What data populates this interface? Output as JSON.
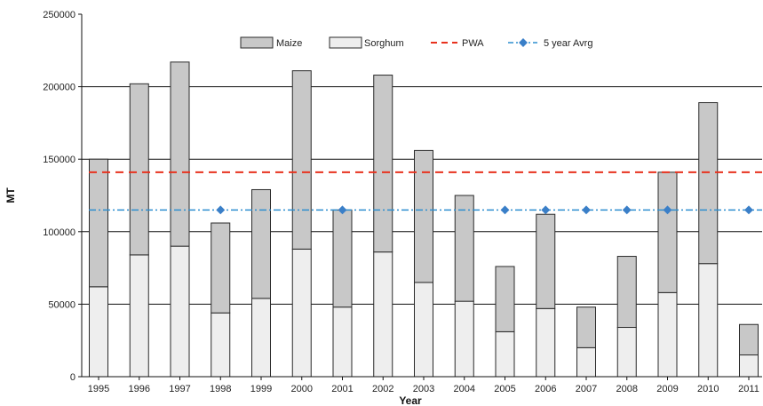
{
  "chart_data": {
    "type": "bar",
    "stacked": true,
    "xlabel": "Year",
    "ylabel": "MT",
    "ylim": [
      0,
      250000
    ],
    "yticks": [
      0,
      50000,
      100000,
      150000,
      200000,
      250000
    ],
    "ytick_labels": [
      "0",
      "50000",
      "100000",
      "150000",
      "200000",
      "250000"
    ],
    "grid": true,
    "legend_position": "top",
    "categories": [
      "1995",
      "1996",
      "1997",
      "1998",
      "1999",
      "2000",
      "2001",
      "2002",
      "2003",
      "2004",
      "2005",
      "2006",
      "2007",
      "2008",
      "2009",
      "2010",
      "2011"
    ],
    "series": [
      {
        "name": "Sorghum",
        "kind": "bar",
        "values": [
          62000,
          84000,
          90000,
          44000,
          54000,
          88000,
          48000,
          86000,
          65000,
          52000,
          31000,
          47000,
          20000,
          34000,
          58000,
          78000,
          15000
        ]
      },
      {
        "name": "Maize",
        "kind": "bar",
        "values": [
          88000,
          118000,
          127000,
          62000,
          75000,
          123000,
          67000,
          122000,
          91000,
          73000,
          45000,
          65000,
          28000,
          49000,
          83000,
          111000,
          21000
        ]
      },
      {
        "name": "PWA",
        "kind": "line",
        "values": [
          141000,
          141000,
          141000,
          141000,
          141000,
          141000,
          141000,
          141000,
          141000,
          141000,
          141000,
          141000,
          141000,
          141000,
          141000,
          141000,
          141000
        ]
      },
      {
        "name": "5 year Avrg",
        "kind": "line",
        "values": [
          115000,
          115000,
          115000,
          115000,
          115000,
          115000,
          115000,
          115000,
          115000,
          115000,
          115000,
          115000,
          115000,
          115000,
          115000,
          115000,
          115000
        ],
        "marker_years": [
          "1998",
          "2001",
          "2005",
          "2006",
          "2007",
          "2008",
          "2009",
          "2011"
        ]
      }
    ],
    "colors": {
      "maize": "#c8c8c8",
      "sorghum": "#eeeeee",
      "pwa": "#e8321e",
      "avg": "#2f8fcf",
      "avg_marker": "#3a7fc8",
      "grid": "#111111",
      "bar_stroke": "#2a2a2a"
    }
  }
}
